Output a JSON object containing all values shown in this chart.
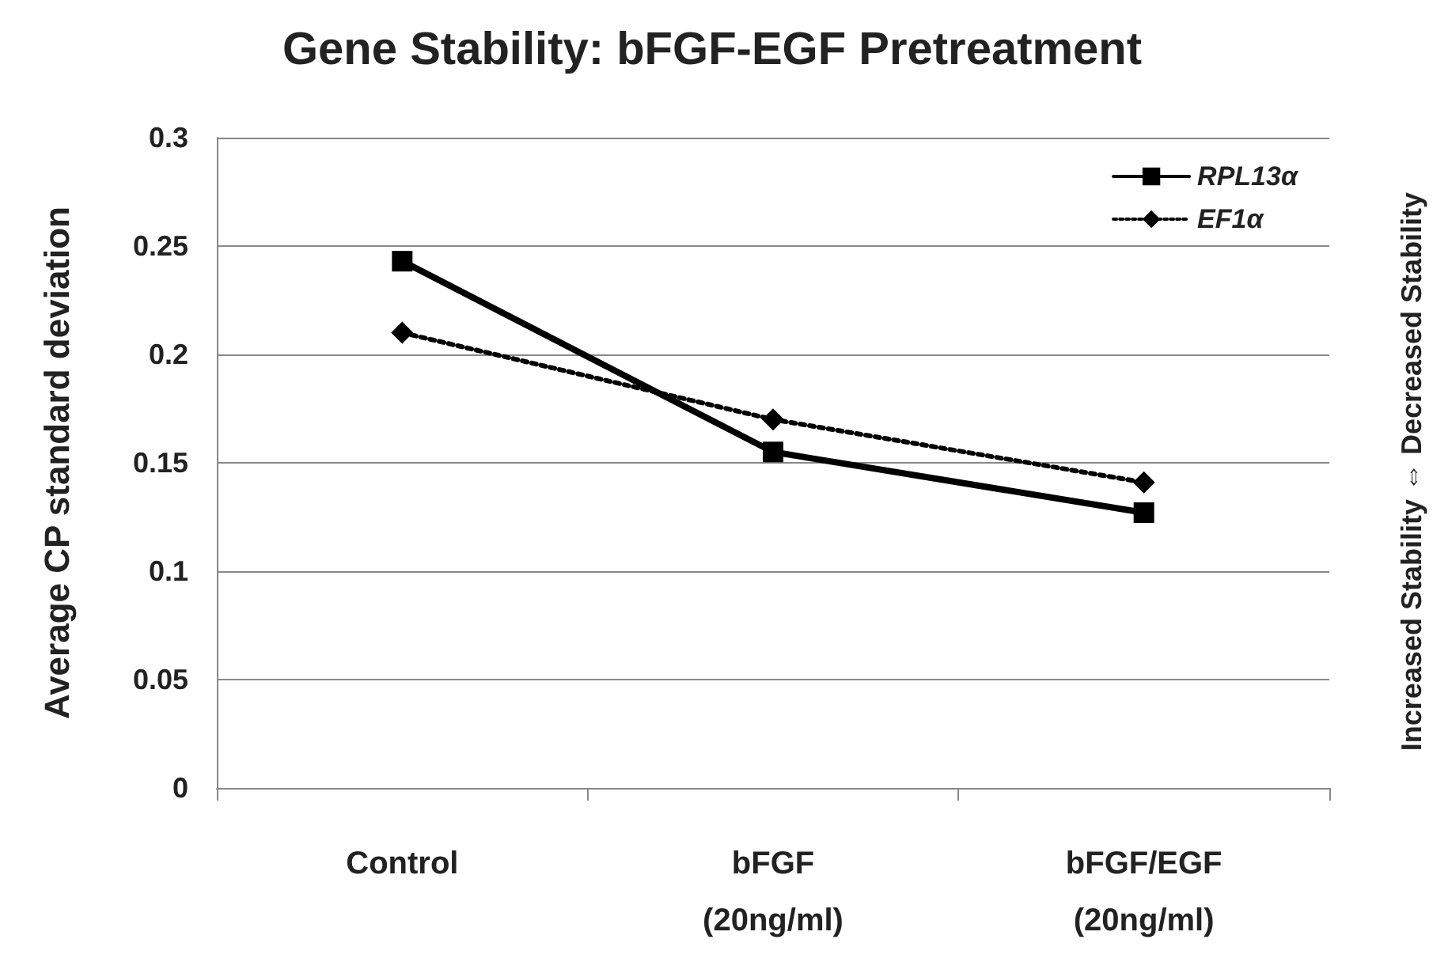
{
  "chart_data": {
    "type": "line",
    "title": "Gene Stability: bFGF-EGF Pretreatment",
    "ylabel": "Average CP standard deviation",
    "y2label": "Increased Stability ⇔ Decreased Stability",
    "categories": [
      "Control",
      "bFGF\n(20ng/ml)",
      "bFGF/EGF\n(20ng/ml)"
    ],
    "series": [
      {
        "name": "RPL13α",
        "color": "#000000",
        "marker": "square",
        "line_style": "solid",
        "values": [
          0.243,
          0.155,
          0.127
        ]
      },
      {
        "name": "EF1α",
        "color": "#000000",
        "marker": "diamond",
        "line_style": "dotted",
        "values": [
          0.21,
          0.17,
          0.141
        ]
      }
    ],
    "ylim": [
      0,
      0.3
    ],
    "yticks": [
      0,
      0.05,
      0.1,
      0.15,
      0.2,
      0.25,
      0.3
    ],
    "grid": "y",
    "legend": "top right"
  }
}
